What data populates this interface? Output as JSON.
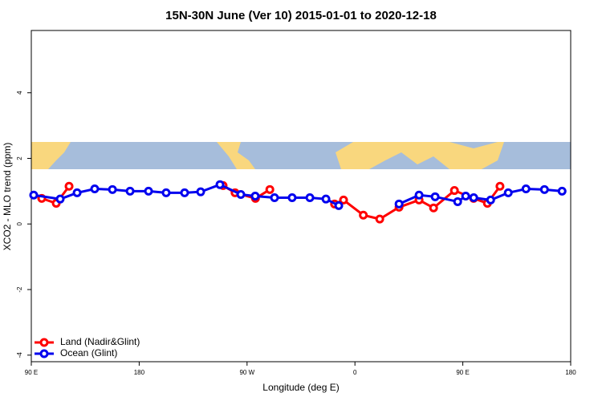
{
  "chart_data": {
    "type": "line",
    "title": "15N-30N June (Ver 10)   2015-01-01 to 2020-12-18",
    "xlabel": "Longitude (deg E)",
    "ylabel": "XCO2 - MLO trend (ppm)",
    "xlim": [
      90,
      540
    ],
    "ylim": [
      -4.2,
      5.9
    ],
    "xticks": [
      {
        "value": 90,
        "label": "90 E"
      },
      180,
      {
        "value": 270,
        "label": "90 W"
      },
      {
        "value": 360,
        "label": "0"
      },
      {
        "value": 450,
        "label": "90 E"
      },
      {
        "value": 540,
        "label": "180"
      }
    ],
    "yticks": [
      -4,
      -2,
      0,
      2,
      4
    ],
    "legend": "bottom-left",
    "series": [
      {
        "name": "Land (Nadir&Glint)",
        "color": "#ff0000",
        "x": [
          98.7,
          110.8,
          121.5,
          null,
          250,
          260,
          277,
          289,
          null,
          343,
          350.5,
          367,
          380.7,
          396.8,
          413.5,
          425.6,
          443,
          459,
          470.5,
          481
        ],
        "values": [
          0.78,
          0.63,
          1.15,
          null,
          1.17,
          0.95,
          0.78,
          1.05,
          null,
          0.61,
          0.73,
          0.27,
          0.15,
          0.51,
          0.73,
          0.49,
          1.02,
          0.78,
          0.63,
          1.15
        ]
      },
      {
        "name": "Ocean (Glint)",
        "color": "#0000ee",
        "x": [
          92.0,
          114.1,
          128.2,
          142.9,
          157.7,
          172.4,
          187.8,
          202.5,
          217.9,
          231.3,
          247.4,
          264.8,
          276.8,
          292.9,
          307.6,
          322.4,
          335.8,
          346.5,
          null,
          396.8,
          413.5,
          426.9,
          445.7,
          452.4,
          459.1,
          473.2,
          487.9,
          502.7,
          518.1,
          532.8
        ],
        "values": [
          0.88,
          0.76,
          0.95,
          1.07,
          1.05,
          1.0,
          1.0,
          0.95,
          0.95,
          0.98,
          1.2,
          0.9,
          0.85,
          0.8,
          0.8,
          0.8,
          0.76,
          0.56,
          null,
          0.61,
          0.88,
          0.83,
          0.68,
          0.85,
          0.8,
          0.73,
          0.95,
          1.07,
          1.05,
          1.0
        ]
      }
    ]
  }
}
